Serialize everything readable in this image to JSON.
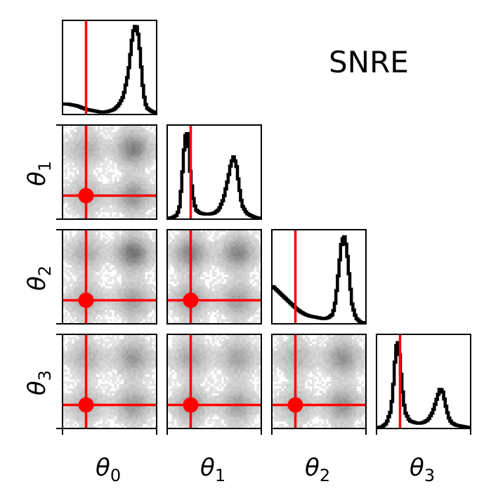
{
  "chart_data": {
    "type": "corner",
    "title": "SNRE",
    "parameters": [
      {
        "symbol": "θ",
        "index": "0"
      },
      {
        "symbol": "θ",
        "index": "1"
      },
      {
        "symbol": "θ",
        "index": "2"
      },
      {
        "symbol": "θ",
        "index": "3"
      }
    ],
    "range": [
      0,
      1
    ],
    "true_values": [
      0.25,
      0.25,
      0.25,
      0.25
    ],
    "marker_color": "#ff0000",
    "line_color": "#000000",
    "hist_cmap": [
      "#e5e5e5",
      "#5a5a5a"
    ],
    "marginals": [
      {
        "x": [
          0.0,
          0.05,
          0.1,
          0.15,
          0.2,
          0.25,
          0.3,
          0.35,
          0.4,
          0.45,
          0.5,
          0.55,
          0.6,
          0.65,
          0.7,
          0.72,
          0.74,
          0.76,
          0.78,
          0.8,
          0.82,
          0.84,
          0.86,
          0.88,
          0.9,
          0.95,
          1.0
        ],
        "y": [
          0.11,
          0.11,
          0.1,
          0.09,
          0.07,
          0.05,
          0.04,
          0.03,
          0.02,
          0.02,
          0.03,
          0.05,
          0.1,
          0.2,
          0.45,
          0.62,
          0.82,
          0.95,
          1.0,
          0.97,
          0.8,
          0.55,
          0.3,
          0.15,
          0.07,
          0.03,
          0.01
        ]
      },
      {
        "x": [
          0.0,
          0.05,
          0.1,
          0.13,
          0.16,
          0.18,
          0.2,
          0.22,
          0.24,
          0.27,
          0.3,
          0.35,
          0.4,
          0.45,
          0.5,
          0.55,
          0.6,
          0.65,
          0.68,
          0.71,
          0.74,
          0.77,
          0.8,
          0.85,
          0.9,
          0.95,
          1.0
        ],
        "y": [
          0.0,
          0.01,
          0.04,
          0.15,
          0.55,
          0.85,
          1.0,
          0.9,
          0.55,
          0.25,
          0.1,
          0.06,
          0.05,
          0.05,
          0.06,
          0.1,
          0.22,
          0.45,
          0.62,
          0.7,
          0.6,
          0.35,
          0.15,
          0.06,
          0.03,
          0.01,
          0.0
        ]
      },
      {
        "x": [
          0.0,
          0.05,
          0.1,
          0.15,
          0.2,
          0.25,
          0.3,
          0.35,
          0.4,
          0.45,
          0.5,
          0.55,
          0.6,
          0.65,
          0.68,
          0.71,
          0.74,
          0.77,
          0.8,
          0.83,
          0.86,
          0.9,
          0.95,
          1.0
        ],
        "y": [
          0.42,
          0.37,
          0.32,
          0.27,
          0.22,
          0.17,
          0.13,
          0.1,
          0.08,
          0.07,
          0.06,
          0.05,
          0.06,
          0.1,
          0.25,
          0.55,
          0.88,
          1.0,
          0.85,
          0.5,
          0.2,
          0.06,
          0.01,
          0.0
        ]
      },
      {
        "x": [
          0.0,
          0.05,
          0.1,
          0.15,
          0.18,
          0.2,
          0.22,
          0.24,
          0.27,
          0.3,
          0.35,
          0.4,
          0.45,
          0.5,
          0.55,
          0.6,
          0.65,
          0.68,
          0.71,
          0.74,
          0.77,
          0.8,
          0.85,
          0.9,
          0.95,
          1.0
        ],
        "y": [
          0.0,
          0.01,
          0.05,
          0.2,
          0.55,
          0.88,
          1.0,
          0.85,
          0.45,
          0.18,
          0.08,
          0.06,
          0.05,
          0.06,
          0.09,
          0.18,
          0.35,
          0.45,
          0.4,
          0.25,
          0.12,
          0.06,
          0.03,
          0.02,
          0.01,
          0.0
        ]
      }
    ],
    "joint_modes": [
      {
        "pair": [
          0,
          1
        ],
        "peaks": [
          [
            0.75,
            0.75,
            0.6
          ],
          [
            0.75,
            0.25,
            0.45
          ],
          [
            0.25,
            0.75,
            0.2
          ],
          [
            0.25,
            0.25,
            0.2
          ]
        ]
      },
      {
        "pair": [
          0,
          2
        ],
        "peaks": [
          [
            0.75,
            0.75,
            0.7
          ],
          [
            0.75,
            0.25,
            0.35
          ],
          [
            0.25,
            0.75,
            0.25
          ],
          [
            0.25,
            0.25,
            0.25
          ]
        ]
      },
      {
        "pair": [
          1,
          2
        ],
        "peaks": [
          [
            0.25,
            0.75,
            0.55
          ],
          [
            0.75,
            0.75,
            0.55
          ],
          [
            0.25,
            0.25,
            0.35
          ],
          [
            0.75,
            0.25,
            0.35
          ]
        ]
      },
      {
        "pair": [
          0,
          3
        ],
        "peaks": [
          [
            0.75,
            0.75,
            0.4
          ],
          [
            0.75,
            0.25,
            0.4
          ],
          [
            0.25,
            0.75,
            0.2
          ],
          [
            0.25,
            0.25,
            0.2
          ]
        ]
      },
      {
        "pair": [
          1,
          3
        ],
        "peaks": [
          [
            0.25,
            0.75,
            0.3
          ],
          [
            0.75,
            0.75,
            0.3
          ],
          [
            0.25,
            0.25,
            0.35
          ],
          [
            0.75,
            0.25,
            0.35
          ]
        ]
      },
      {
        "pair": [
          2,
          3
        ],
        "peaks": [
          [
            0.75,
            0.75,
            0.45
          ],
          [
            0.75,
            0.25,
            0.45
          ],
          [
            0.25,
            0.75,
            0.2
          ],
          [
            0.25,
            0.25,
            0.2
          ]
        ]
      }
    ]
  }
}
